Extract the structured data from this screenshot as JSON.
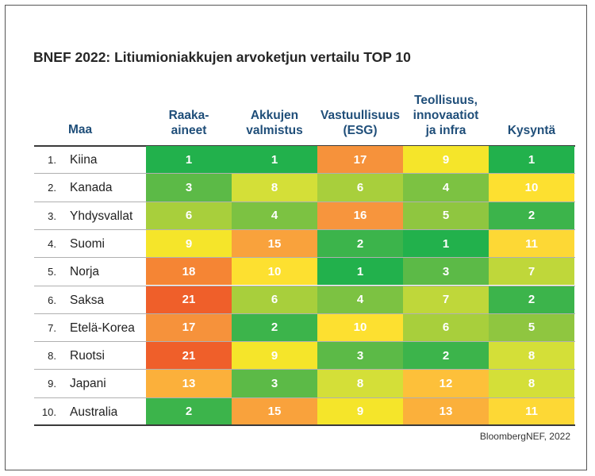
{
  "title": "BNEF 2022: Litiumioniakkujen arvoketjun vertailu TOP 10",
  "source": "BloombergNEF, 2022",
  "chart_data": {
    "type": "heatmap",
    "title": "BNEF 2022: Litiumioniakkujen arvoketjun vertailu TOP 10",
    "row_header": "Maa",
    "columns": [
      [
        "Raaka-",
        "aineet"
      ],
      [
        "Akkujen",
        "valmistus"
      ],
      [
        "Vastuullisuus",
        "(ESG)"
      ],
      [
        "Teollisuus,",
        "innovaatiot",
        "ja infra"
      ],
      [
        "Kysyntä"
      ]
    ],
    "rows": [
      {
        "rank": "1.",
        "country": "Kiina",
        "values": [
          1,
          1,
          17,
          9,
          1
        ]
      },
      {
        "rank": "2.",
        "country": "Kanada",
        "values": [
          3,
          8,
          6,
          4,
          10
        ]
      },
      {
        "rank": "3.",
        "country": "Yhdysvallat",
        "values": [
          6,
          4,
          16,
          5,
          2
        ]
      },
      {
        "rank": "4.",
        "country": "Suomi",
        "values": [
          9,
          15,
          2,
          1,
          11
        ]
      },
      {
        "rank": "5.",
        "country": "Norja",
        "values": [
          18,
          10,
          1,
          3,
          7
        ]
      },
      {
        "rank": "6.",
        "country": "Saksa",
        "values": [
          21,
          6,
          4,
          7,
          2
        ]
      },
      {
        "rank": "7.",
        "country": "Etelä-Korea",
        "values": [
          17,
          2,
          10,
          6,
          5
        ]
      },
      {
        "rank": "8.",
        "country": "Ruotsi",
        "values": [
          21,
          9,
          3,
          2,
          8
        ]
      },
      {
        "rank": "9.",
        "country": "Japani",
        "values": [
          13,
          3,
          8,
          12,
          8
        ]
      },
      {
        "rank": "10.",
        "country": "Australia",
        "values": [
          2,
          15,
          9,
          13,
          11
        ]
      }
    ],
    "color_scale": {
      "1": "#22b14c",
      "2": "#3cb44b",
      "3": "#5cba47",
      "4": "#7cc242",
      "5": "#8fc640",
      "6": "#a8cf3c",
      "7": "#bfd73a",
      "8": "#d4df38",
      "9": "#f5e52a",
      "10": "#fde030",
      "11": "#fdd835",
      "12": "#fdc03a",
      "13": "#fbb03b",
      "15": "#f9a23c",
      "16": "#f7953d",
      "17": "#f6923b",
      "18": "#f58534",
      "21": "#ef5f2a"
    }
  }
}
